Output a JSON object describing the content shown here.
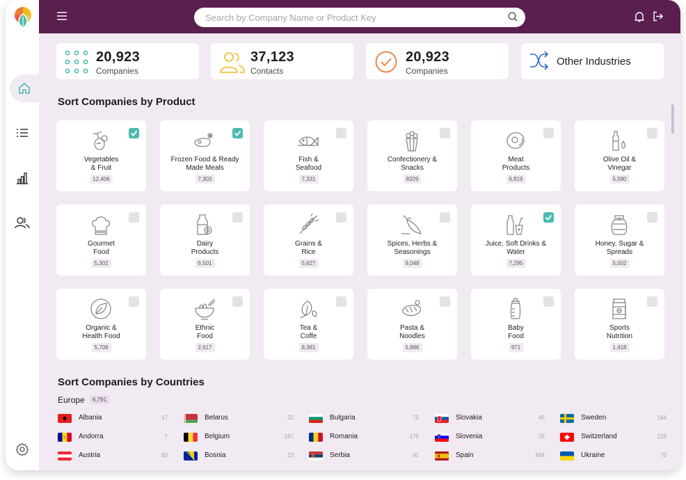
{
  "topbar": {
    "search_placeholder": "Search by Company Name or Product Key"
  },
  "sidebar": {
    "items": [
      {
        "icon": "home-icon"
      },
      {
        "icon": "list-icon"
      },
      {
        "icon": "bar-chart-icon"
      },
      {
        "icon": "users-icon"
      }
    ],
    "settings_icon": "gear-icon"
  },
  "stats": [
    {
      "value": "20,923",
      "label": "Companies",
      "icon": "grid-dots-icon",
      "color": "#4cbab0"
    },
    {
      "value": "37,123",
      "label": "Contacts",
      "icon": "contacts-icon",
      "color": "#f2b91f"
    },
    {
      "value": "20,923",
      "label": "Companies",
      "icon": "check-circle-icon",
      "color": "#ef7b35"
    },
    {
      "label": "Other Industries",
      "icon": "shuffle-icon",
      "color": "#2a6ccb"
    }
  ],
  "products_title": "Sort Companies by Product",
  "products": [
    {
      "name1": "Vegetables",
      "name2": "& Fruit",
      "count": "12,406",
      "checked": true,
      "icon": "vegetables-icon"
    },
    {
      "name1": "Frozen Food & Ready",
      "name2": "Made Meals",
      "count": "7,303",
      "checked": true,
      "icon": "frozen-food-icon"
    },
    {
      "name1": "Fish &",
      "name2": "Seafood",
      "count": "7,331",
      "checked": false,
      "icon": "fish-icon"
    },
    {
      "name1": "Confectionery &",
      "name2": "Snacks",
      "count": "8329",
      "checked": false,
      "icon": "popcorn-icon"
    },
    {
      "name1": "Meat",
      "name2": "Products",
      "count": "6,819",
      "checked": false,
      "icon": "meat-icon"
    },
    {
      "name1": "Olive Oil &",
      "name2": "Vinegar",
      "count": "5,580",
      "checked": false,
      "icon": "oil-bottle-icon"
    },
    {
      "name1": "Gourmet",
      "name2": "Food",
      "count": "5,302",
      "checked": false,
      "icon": "chef-hat-icon"
    },
    {
      "name1": "Dairy",
      "name2": "Products",
      "count": "6,501",
      "checked": false,
      "icon": "milk-icon"
    },
    {
      "name1": "Grains &",
      "name2": "Rice",
      "count": "5,627",
      "checked": false,
      "icon": "wheat-icon"
    },
    {
      "name1": "Spices, Herbs &",
      "name2": "Seasonings",
      "count": "9,048",
      "checked": false,
      "icon": "chili-icon"
    },
    {
      "name1": "Juice, Soft Drinks &",
      "name2": "Water",
      "count": "7,295",
      "checked": true,
      "icon": "drinks-icon"
    },
    {
      "name1": "Honey, Sugar &",
      "name2": "Spreads",
      "count": "5,002",
      "checked": false,
      "icon": "honey-jar-icon"
    },
    {
      "name1": "Organic &",
      "name2": "Health Food",
      "count": "5,709",
      "checked": false,
      "icon": "leaf-circle-icon"
    },
    {
      "name1": "Ethnic",
      "name2": "Food",
      "count": "2,617",
      "checked": false,
      "icon": "noodle-bowl-icon"
    },
    {
      "name1": "Tea &",
      "name2": "Coffe",
      "count": "8,381",
      "checked": false,
      "icon": "tea-leaf-icon"
    },
    {
      "name1": "Pasta &",
      "name2": "Noodles",
      "count": "5,886",
      "checked": false,
      "icon": "pasta-icon"
    },
    {
      "name1": "Baby",
      "name2": "Food",
      "count": "971",
      "checked": false,
      "icon": "baby-bottle-icon"
    },
    {
      "name1": "Sports",
      "name2": "Nutrition",
      "count": "1,418",
      "checked": false,
      "icon": "supplement-jar-icon"
    }
  ],
  "countries_title": "Sort Companies by Countries",
  "region": {
    "name": "Europe",
    "count": "6,791"
  },
  "countries": [
    {
      "name": "Albania",
      "count": "17",
      "flag": "albania"
    },
    {
      "name": "Belarus",
      "count": "22",
      "flag": "belarus"
    },
    {
      "name": "Bulgaria",
      "count": "75",
      "flag": "bulgaria"
    },
    {
      "name": "Slovakia",
      "count": "45",
      "flag": "slovakia"
    },
    {
      "name": "Sweden",
      "count": "164",
      "flag": "sweden"
    },
    {
      "name": "Andorra",
      "count": "7",
      "flag": "andorra"
    },
    {
      "name": "Belgium",
      "count": "187",
      "flag": "belgium"
    },
    {
      "name": "Romania",
      "count": "175",
      "flag": "romania"
    },
    {
      "name": "Slovenia",
      "count": "25",
      "flag": "slovenia"
    },
    {
      "name": "Switzerland",
      "count": "226",
      "flag": "switzerland"
    },
    {
      "name": "Austria",
      "count": "83",
      "flag": "austria"
    },
    {
      "name": "Bosnia",
      "count": "23",
      "flag": "bosnia"
    },
    {
      "name": "Serbia",
      "count": "41",
      "flag": "serbia"
    },
    {
      "name": "Spain",
      "count": "894",
      "flag": "spain"
    },
    {
      "name": "Ukraine",
      "count": "70",
      "flag": "ukraine"
    }
  ],
  "colors": {
    "topbar": "#5a1f4e",
    "background": "#f1eaf2",
    "check": "#4cbab0"
  }
}
